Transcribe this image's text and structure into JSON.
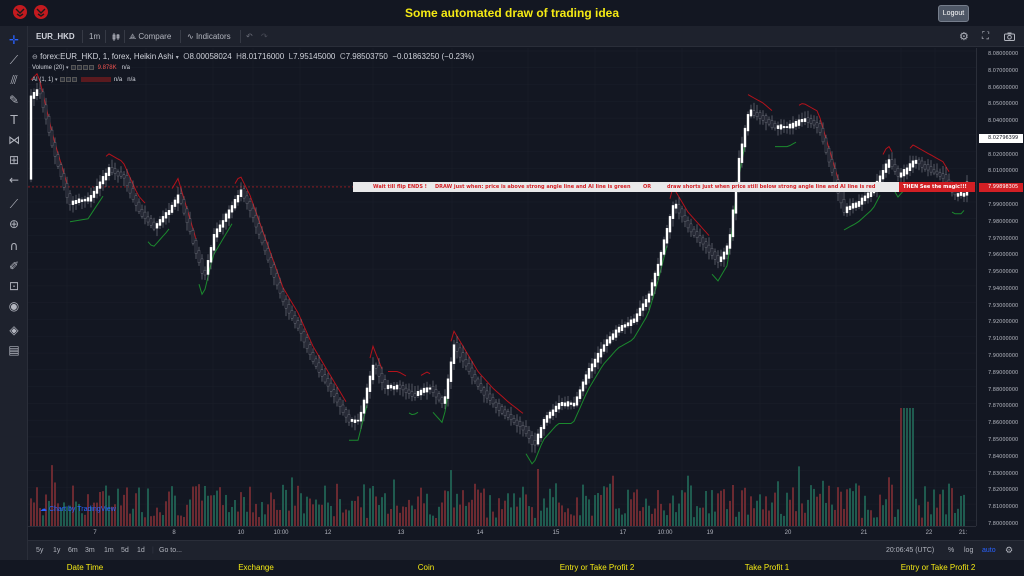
{
  "header": {
    "title": "Some automated draw of trading idea",
    "logout_label": "Logout",
    "logo_icons": [
      "flag-icon",
      "flag-icon"
    ],
    "accent_color": "#f5ea14"
  },
  "toolbar": {
    "symbol": "EUR_HKD",
    "interval": "1m",
    "compare_label": "Compare",
    "indicators_label": "Indicators"
  },
  "legend": {
    "main": "forex:EUR_HKD, 1, forex, Heikin Ashi",
    "o_label": "O",
    "o_value": "8.00058024",
    "h_label": "H",
    "h_value": "8.01716000",
    "l_label": "L",
    "l_value": "7.95145000",
    "c_label": "C",
    "c_value": "7.98503750",
    "change": "−0.01863250 (−0.23%)",
    "volume_label": "Volume (20)",
    "volume_value": "9.878K",
    "volume_na": "n/a",
    "ai_label": "AI (1, 1)",
    "ai_na1": "n/a",
    "ai_na2": "n/a"
  },
  "annotation": {
    "part1": "Wait till flip ENDS  !",
    "part2": "DRAW just when:  price is above strong angle line and AI line is green",
    "part3": "OR",
    "part4": "draw shorts just when price still below strong angle line and AI line is red",
    "part5": "THEN See the magic!!!"
  },
  "price_axis": {
    "ticks": [
      "8.08000000",
      "8.07000000",
      "8.06000000",
      "8.05000000",
      "8.04000000",
      "8.03000000",
      "8.02000000",
      "8.01000000",
      "8.00000000",
      "7.99000000",
      "7.98000000",
      "7.97000000",
      "7.96000000",
      "7.95000000",
      "7.94000000",
      "7.93000000",
      "7.92000000",
      "7.91000000",
      "7.90000000",
      "7.89000000",
      "7.88000000",
      "7.87000000",
      "7.86000000",
      "7.85000000",
      "7.84000000",
      "7.83000000",
      "7.82000000",
      "7.81000000",
      "7.80000000"
    ],
    "current_badge": "8.02796399",
    "last_badge": "7.99898305"
  },
  "time_axis": {
    "ticks": [
      "7",
      "8",
      "10",
      "10:00",
      "12",
      "13",
      "14",
      "15",
      "17",
      "10:00",
      "19",
      "20",
      "21",
      "22",
      "21:"
    ]
  },
  "range_bar": {
    "ranges": [
      "5y",
      "1y",
      "6m",
      "3m",
      "1m",
      "5d",
      "1d"
    ],
    "goto_label": "Go to...",
    "time": "20:06:45 (UTC)",
    "percent_label": "%",
    "log_label": "log",
    "auto_label": "auto"
  },
  "footer": {
    "items": [
      "Date Time",
      "Exchange",
      "Coin",
      "Entry or Take Profit 2",
      "Take Profit 1",
      "Entry or Take Profit 2"
    ]
  },
  "watermark": "Chart by TradingView",
  "colors": {
    "up": "#ffffff",
    "down": "#787b86",
    "ai_green": "#1b8a2e",
    "ai_red": "#b5121b",
    "vol_up": "#26a69a",
    "vol_down": "#ef5350",
    "badge_current": "#ffffff",
    "badge_last": "#d21f24"
  }
}
